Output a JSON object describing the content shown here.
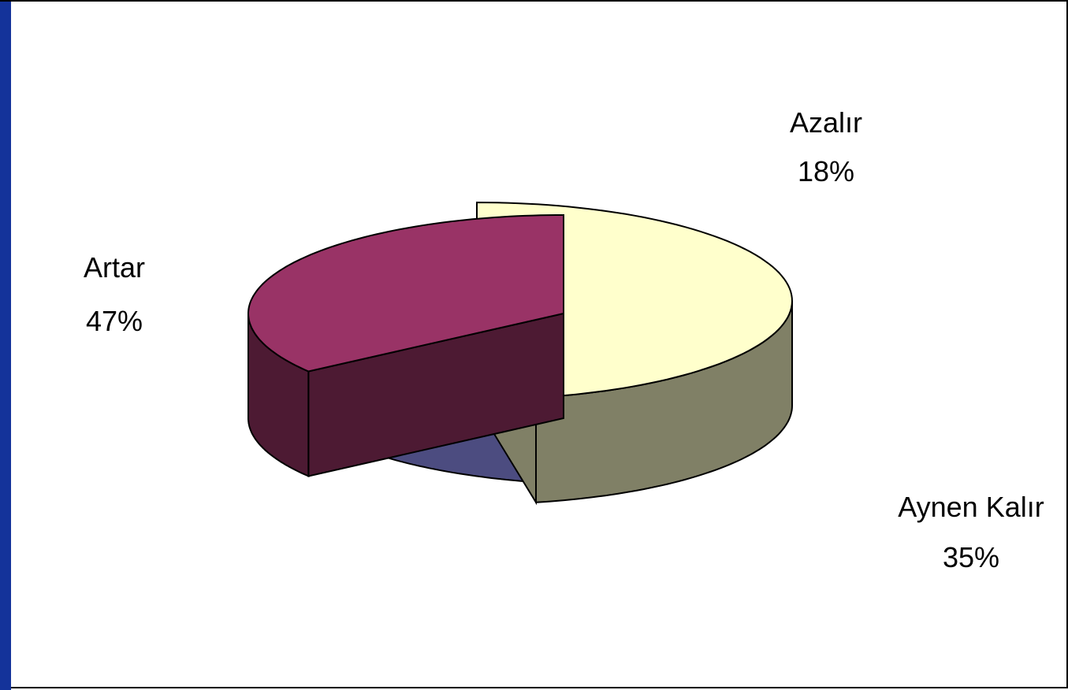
{
  "chart_data": {
    "type": "pie",
    "style": "3d-exploded",
    "title": "",
    "slices": [
      {
        "label": "Artar",
        "percent_label": "47%",
        "value": 47,
        "color_top": "#ffffcc",
        "color_side": "#808066"
      },
      {
        "label": "Azalır",
        "percent_label": "18%",
        "value": 18,
        "color_top": "#9999ff",
        "color_side": "#4c4c80"
      },
      {
        "label": "Aynen Kalır",
        "percent_label": "35%",
        "value": 35,
        "color_top": "#993366",
        "color_side": "#4d1a33"
      }
    ],
    "legend": "none"
  },
  "colors": {
    "frame_accent": "#14339a",
    "background": "#ffffff"
  }
}
